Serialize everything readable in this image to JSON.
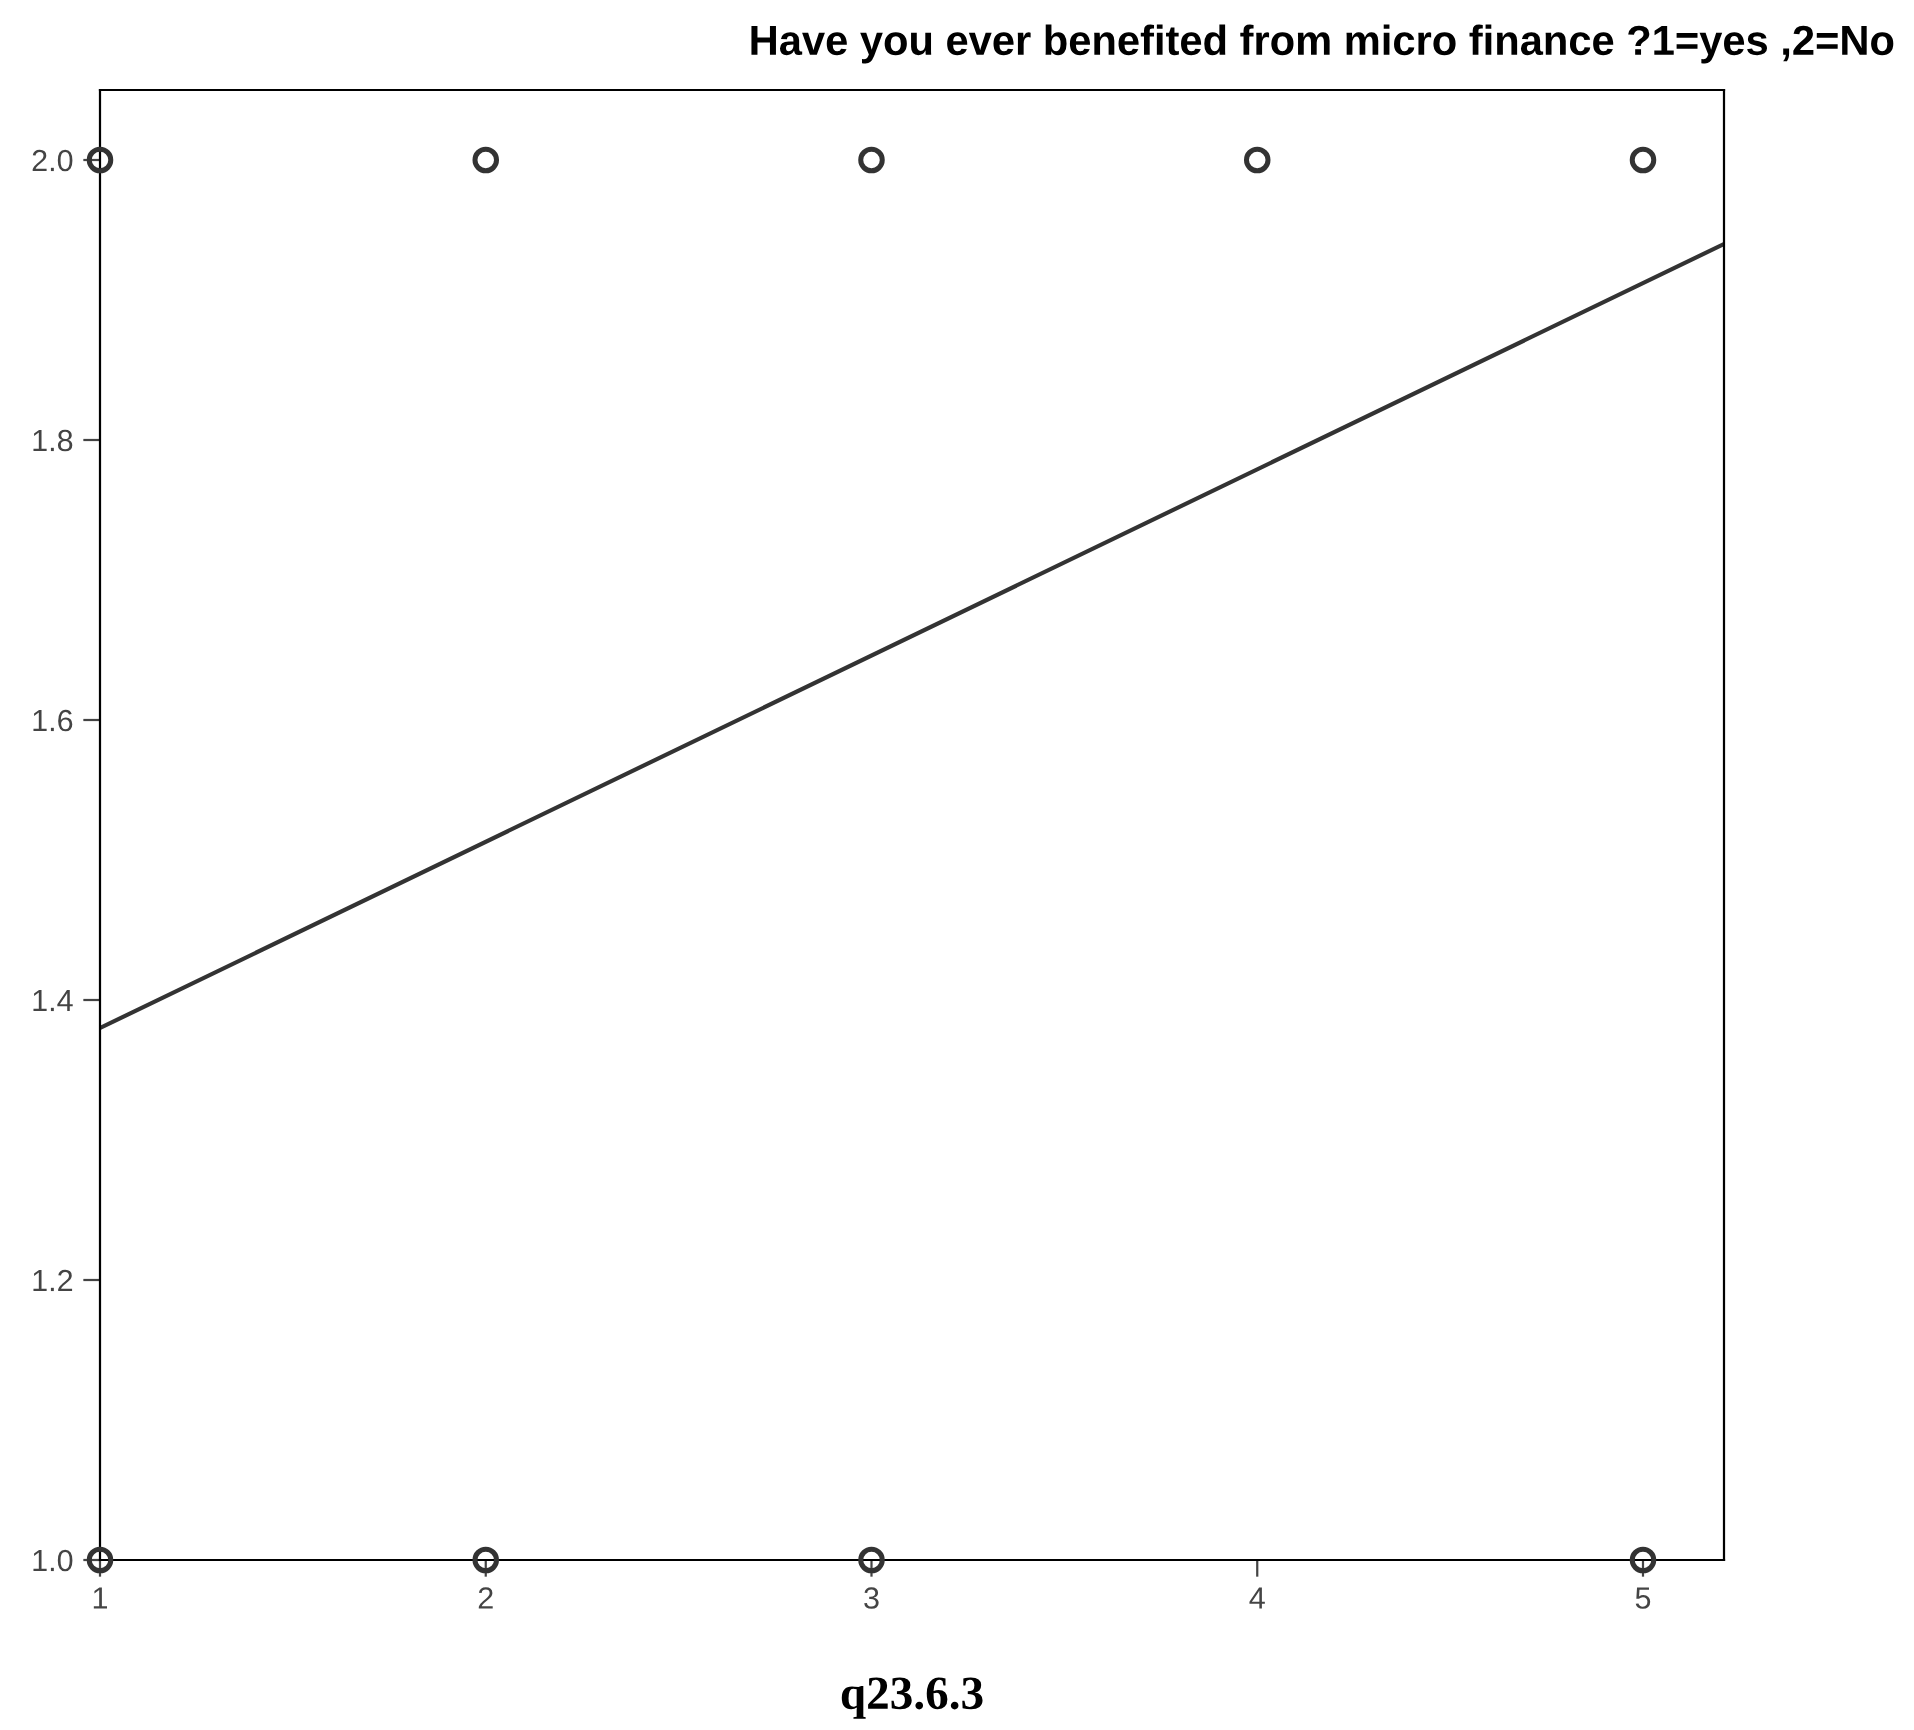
{
  "chart_data": {
    "type": "scatter",
    "title": "Have you ever benefited from micro finance ?1=yes ,2=No",
    "xlabel": "q23.6.3",
    "series": [
      {
        "x": [
          1,
          2,
          3,
          4,
          5,
          1,
          2,
          3,
          5
        ],
        "values": [
          2,
          2,
          2,
          2,
          2,
          1,
          1,
          1,
          1
        ],
        "color": "#333333",
        "marker": "circle"
      },
      {
        "type": "line",
        "x": [
          1,
          5.21
        ],
        "values": [
          1.38,
          1.94
        ],
        "color": "#333333",
        "marker": "none"
      }
    ],
    "xlim": [
      1,
      5.21
    ],
    "ylim": [
      1,
      2.05
    ],
    "xticks": [
      1,
      2,
      3,
      4,
      5
    ],
    "yticks": [
      {
        "value": 1.0,
        "label": "1.0"
      },
      {
        "value": 1.2,
        "label": "1.2"
      },
      {
        "value": 1.4,
        "label": "1.4"
      },
      {
        "value": 1.6,
        "label": "1.6"
      },
      {
        "value": 1.8,
        "label": "1.8"
      },
      {
        "value": 2.0,
        "label": "2.0"
      }
    ],
    "grid": false,
    "legend": false,
    "line_style": "solid"
  }
}
